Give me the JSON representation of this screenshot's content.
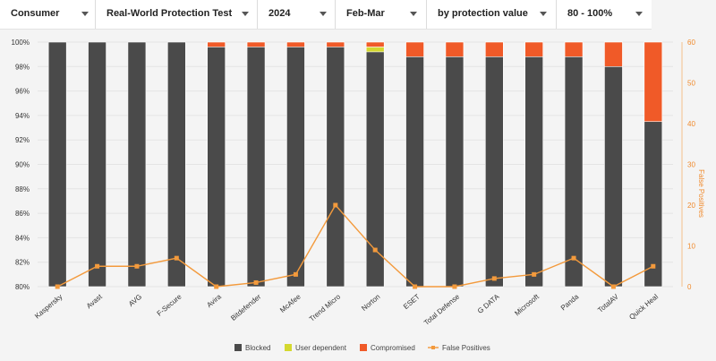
{
  "filters": [
    {
      "label": "Consumer"
    },
    {
      "label": "Real-World Protection Test"
    },
    {
      "label": "2024"
    },
    {
      "label": "Feb-Mar"
    },
    {
      "label": "by protection value"
    },
    {
      "label": "80 - 100%"
    }
  ],
  "colors": {
    "blocked": "#4a4a4a",
    "user_dependent": "#d4d82f",
    "compromised": "#f05a28",
    "false_positives": "#f39a3c"
  },
  "chart_data": {
    "type": "bar",
    "stacked": true,
    "categories": [
      "Kaspersky",
      "Avast",
      "AVG",
      "F-Secure",
      "Avira",
      "Bitdefender",
      "McAfee",
      "Trend Micro",
      "Norton",
      "ESET",
      "Total Defense",
      "G DATA",
      "Microsoft",
      "Panda",
      "TotalAV",
      "Quick Heal"
    ],
    "series": [
      {
        "name": "Blocked",
        "values": [
          100,
          100,
          100,
          100,
          99.6,
          99.6,
          99.6,
          99.6,
          99.2,
          98.8,
          98.8,
          98.8,
          98.8,
          98.8,
          98.0,
          93.5
        ]
      },
      {
        "name": "User dependent",
        "values": [
          0,
          0,
          0,
          0,
          0,
          0,
          0,
          0,
          0.4,
          0,
          0,
          0,
          0,
          0,
          0,
          0
        ]
      },
      {
        "name": "Compromised",
        "values": [
          0,
          0,
          0,
          0,
          0.4,
          0.4,
          0.4,
          0.4,
          0.4,
          1.2,
          1.2,
          1.2,
          1.2,
          1.2,
          2.0,
          6.5
        ]
      }
    ],
    "line_series": {
      "name": "False Positives",
      "axis": "right",
      "values": [
        0,
        5,
        5,
        7,
        0,
        1,
        3,
        20,
        9,
        0,
        0,
        2,
        3,
        7,
        0,
        5
      ]
    },
    "ylim": [
      80,
      100
    ],
    "yticks": [
      "80%",
      "82%",
      "84%",
      "86%",
      "88%",
      "90%",
      "92%",
      "94%",
      "96%",
      "98%",
      "100%"
    ],
    "y2lim": [
      0,
      60
    ],
    "y2ticks": [
      "0",
      "10",
      "20",
      "30",
      "40",
      "50",
      "60"
    ],
    "y2label": "False Positives",
    "legend_position": "bottom"
  }
}
